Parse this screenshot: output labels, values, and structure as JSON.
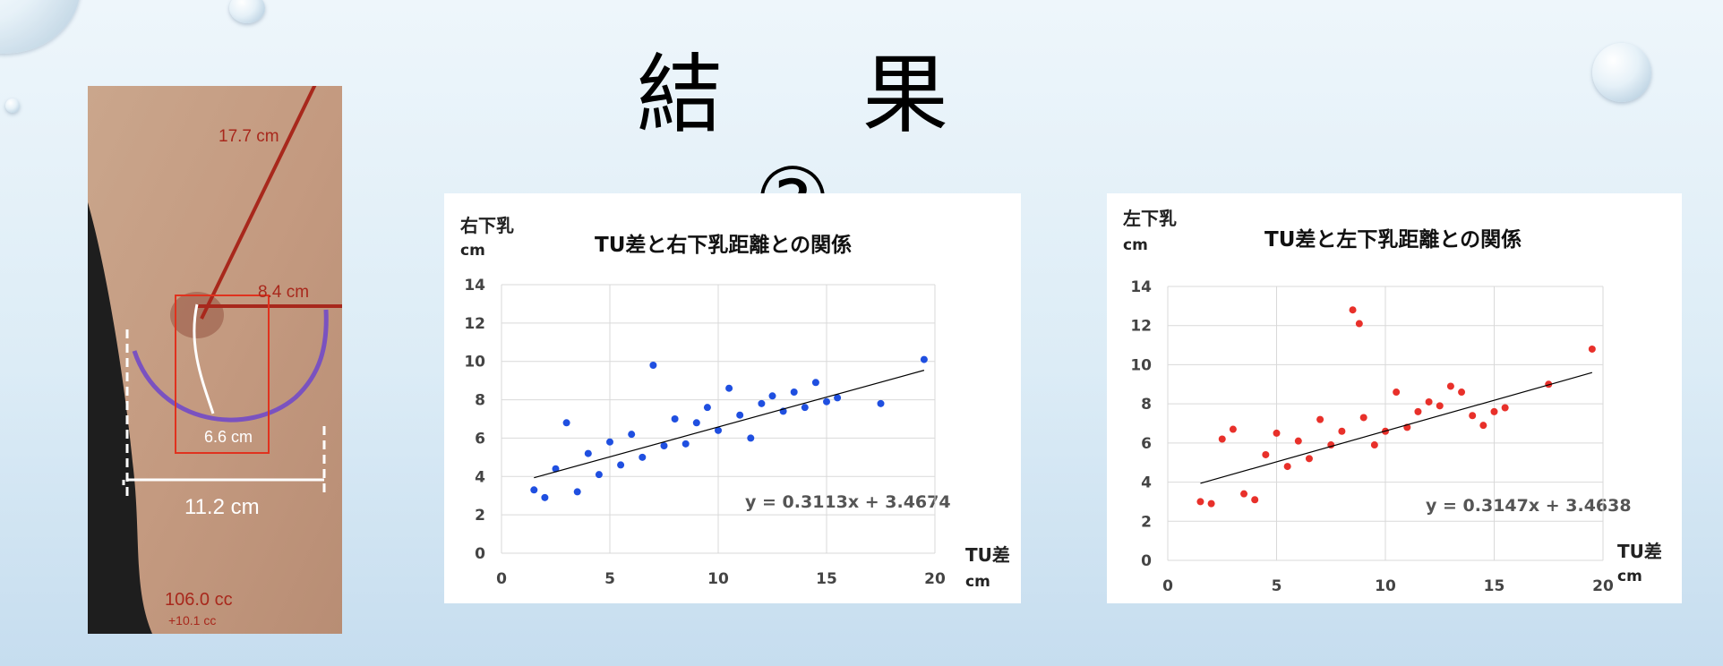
{
  "slide": {
    "title": "結　果　②"
  },
  "photo": {
    "labels": [
      "17.7 cm",
      "8.4 cm",
      "6.6 cm",
      "11.2 cm",
      "106.0 cc",
      "+10.1 cc"
    ]
  },
  "colors": {
    "right_series": "#1f4fe0",
    "left_series": "#e8302a",
    "trendline": "#000000"
  },
  "chart_data": [
    {
      "type": "scatter",
      "title": "TU差と右下乳距離との関係",
      "ylabel": "右下乳",
      "yunit": "cm",
      "xlabel": "TU差",
      "xunit": "cm",
      "xlim": [
        0,
        20
      ],
      "ylim": [
        0,
        14
      ],
      "xticks": [
        0,
        5,
        10,
        15,
        20
      ],
      "yticks": [
        0,
        2,
        4,
        6,
        8,
        10,
        12,
        14
      ],
      "grid": true,
      "trendline": {
        "slope": 0.3113,
        "intercept": 3.4674,
        "x_range": [
          1.5,
          19.5
        ],
        "equation": "y = 0.3113x + 3.4674"
      },
      "series": [
        {
          "points": [
            [
              1.5,
              3.3
            ],
            [
              2.0,
              2.9
            ],
            [
              2.5,
              4.4
            ],
            [
              3.0,
              6.8
            ],
            [
              3.5,
              3.2
            ],
            [
              4.0,
              5.2
            ],
            [
              4.5,
              4.1
            ],
            [
              5.0,
              5.8
            ],
            [
              5.5,
              4.6
            ],
            [
              6.0,
              6.2
            ],
            [
              6.5,
              5.0
            ],
            [
              7.0,
              9.8
            ],
            [
              7.5,
              5.6
            ],
            [
              8.0,
              7.0
            ],
            [
              8.5,
              5.7
            ],
            [
              9.0,
              6.8
            ],
            [
              9.5,
              7.6
            ],
            [
              10.0,
              6.4
            ],
            [
              10.5,
              8.6
            ],
            [
              11.0,
              7.2
            ],
            [
              11.5,
              6.0
            ],
            [
              12.0,
              7.8
            ],
            [
              12.5,
              8.2
            ],
            [
              13.0,
              7.4
            ],
            [
              13.5,
              8.4
            ],
            [
              14.0,
              7.6
            ],
            [
              14.5,
              8.9
            ],
            [
              15.0,
              7.9
            ],
            [
              15.5,
              8.1
            ],
            [
              17.5,
              7.8
            ],
            [
              19.5,
              10.1
            ]
          ]
        }
      ]
    },
    {
      "type": "scatter",
      "title": "TU差と左下乳距離との関係",
      "ylabel": "左下乳",
      "yunit": "cm",
      "xlabel": "TU差",
      "xunit": "cm",
      "xlim": [
        0,
        20
      ],
      "ylim": [
        0,
        14
      ],
      "xticks": [
        0,
        5,
        10,
        15,
        20
      ],
      "yticks": [
        0,
        2,
        4,
        6,
        8,
        10,
        12,
        14
      ],
      "grid": true,
      "trendline": {
        "slope": 0.3147,
        "intercept": 3.4638,
        "x_range": [
          1.5,
          19.5
        ],
        "equation": "y = 0.3147x + 3.4638"
      },
      "series": [
        {
          "points": [
            [
              1.5,
              3.0
            ],
            [
              2.0,
              2.9
            ],
            [
              2.5,
              6.2
            ],
            [
              3.0,
              6.7
            ],
            [
              3.5,
              3.4
            ],
            [
              4.0,
              3.1
            ],
            [
              4.5,
              5.4
            ],
            [
              5.0,
              6.5
            ],
            [
              5.5,
              4.8
            ],
            [
              6.0,
              6.1
            ],
            [
              6.5,
              5.2
            ],
            [
              7.0,
              7.2
            ],
            [
              7.5,
              5.9
            ],
            [
              8.0,
              6.6
            ],
            [
              8.5,
              12.8
            ],
            [
              8.8,
              12.1
            ],
            [
              9.0,
              7.3
            ],
            [
              9.5,
              5.9
            ],
            [
              10.0,
              6.6
            ],
            [
              10.5,
              8.6
            ],
            [
              11.0,
              6.8
            ],
            [
              11.5,
              7.6
            ],
            [
              12.0,
              8.1
            ],
            [
              12.5,
              7.9
            ],
            [
              13.0,
              8.9
            ],
            [
              13.5,
              8.6
            ],
            [
              14.0,
              7.4
            ],
            [
              14.5,
              6.9
            ],
            [
              15.0,
              7.6
            ],
            [
              15.5,
              7.8
            ],
            [
              17.5,
              9.0
            ],
            [
              19.5,
              10.8
            ]
          ]
        }
      ]
    }
  ]
}
